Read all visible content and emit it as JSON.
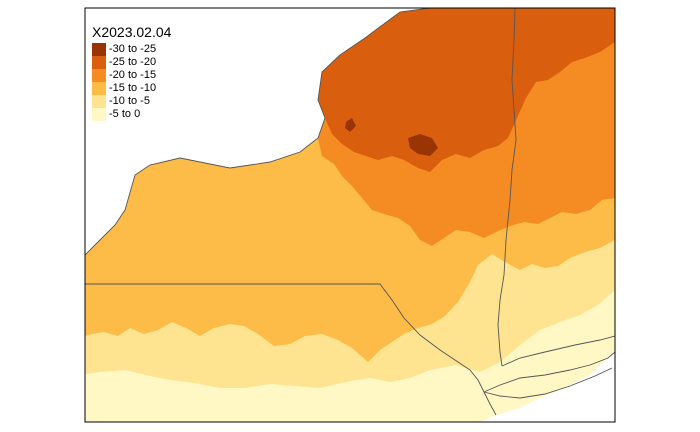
{
  "map": {
    "title": "X2023.02.04",
    "legend": [
      {
        "label": "-30 to -25",
        "color": "#993404"
      },
      {
        "label": "-25 to -20",
        "color": "#d95f0e"
      },
      {
        "label": "-20 to -15",
        "color": "#f48c23"
      },
      {
        "label": "-15 to -10",
        "color": "#fdbb47"
      },
      {
        "label": "-10 to -5",
        "color": "#fee391"
      },
      {
        "label": "-5 to 0",
        "color": "#fff7c4"
      }
    ],
    "colors": {
      "frame": "#000000",
      "border_lines": "#555555",
      "background": "#ffffff"
    }
  }
}
